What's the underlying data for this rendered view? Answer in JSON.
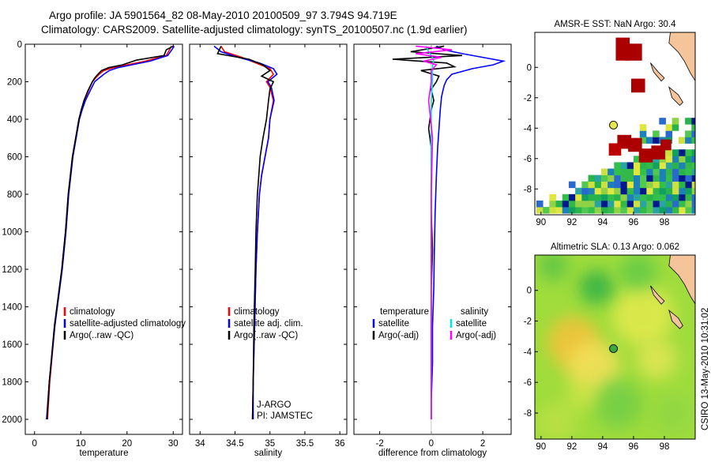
{
  "header": {
    "line1": "Argo profile: JA 5901564_82 08-May-2010 20100509_97 3.794S 94.719E",
    "line2": "Climatology: CARS2009. Satellite-adjusted climatology: synTS_20100507.nc (1.9d earlier)"
  },
  "colors": {
    "clim": "#ff0000",
    "sat": "#0000ff",
    "argo": "#000000",
    "sat_sal": "#00e5e5",
    "argo_sal": "#ff00ff",
    "marker": "#e6e64d"
  },
  "chart_data": [
    {
      "id": "temperature",
      "type": "line",
      "xlabel": "temperature",
      "ylabel": "",
      "xlim": [
        -2,
        32
      ],
      "ylim": [
        0,
        2080
      ],
      "y_inverted": true,
      "xticks": [
        0,
        10,
        20,
        30
      ],
      "yticks": [
        0,
        200,
        400,
        600,
        800,
        1000,
        1200,
        1400,
        1600,
        1800,
        2000
      ],
      "series": [
        {
          "name": "climatology",
          "color": "#ff0000",
          "x": [
            29.6,
            29.2,
            28.5,
            24,
            20,
            17,
            15,
            14,
            13.2,
            12.5,
            11.6,
            10.8,
            10.2,
            9.6,
            8.9,
            8.2,
            7.3,
            6.7,
            5.9,
            4.4,
            3.3,
            2.8
          ],
          "y": [
            10,
            30,
            60,
            90,
            110,
            125,
            140,
            160,
            180,
            200,
            250,
            300,
            350,
            400,
            500,
            600,
            800,
            1000,
            1200,
            1500,
            1800,
            2000
          ]
        },
        {
          "name": "satellite-adjusted climatology",
          "color": "#0000ff",
          "x": [
            30.2,
            29.7,
            28.8,
            25,
            21,
            18,
            16.2,
            15,
            14,
            13,
            12,
            11,
            10.3,
            9.7,
            9,
            8.3,
            7.4,
            6.8,
            6,
            4.4,
            3.2,
            2.6
          ],
          "y": [
            10,
            30,
            60,
            90,
            110,
            125,
            140,
            160,
            180,
            200,
            250,
            300,
            350,
            400,
            500,
            600,
            800,
            1000,
            1200,
            1500,
            1800,
            2000
          ]
        },
        {
          "name": "Argo(..raw -QC)",
          "color": "#000000",
          "x": [
            30,
            28.5,
            28,
            22,
            19,
            16,
            14.5,
            13.7,
            13,
            12.5,
            11.5,
            10.7,
            10.1,
            9.6,
            8.9,
            8.2,
            7.3,
            6.7,
            5.9,
            4.3,
            3.2,
            2.7
          ],
          "y": [
            10,
            30,
            60,
            85,
            110,
            125,
            140,
            160,
            180,
            200,
            250,
            300,
            350,
            400,
            500,
            600,
            800,
            1000,
            1200,
            1500,
            1800,
            2000
          ]
        }
      ],
      "legend": [
        "climatology",
        "satellite-adjusted climatology",
        "Argo(..raw -QC)"
      ]
    },
    {
      "id": "salinity",
      "type": "line",
      "xlabel": "salinity",
      "ylabel": "",
      "xlim": [
        33.85,
        36.1
      ],
      "ylim": [
        0,
        2080
      ],
      "y_inverted": true,
      "xticks": [
        34,
        34.5,
        35,
        35.5,
        36
      ],
      "yticks": [
        0,
        200,
        400,
        600,
        800,
        1000,
        1200,
        1400,
        1600,
        1800,
        2000
      ],
      "series": [
        {
          "name": "climatology",
          "color": "#ff0000",
          "x": [
            34.3,
            34.35,
            34.6,
            34.8,
            35.0,
            35.05,
            34.95,
            35.0,
            35.05,
            35.0,
            34.98,
            34.93,
            34.88,
            34.85,
            34.82,
            34.8,
            34.78,
            34.76,
            34.75
          ],
          "y": [
            10,
            40,
            70,
            100,
            130,
            160,
            200,
            230,
            300,
            400,
            500,
            600,
            700,
            800,
            1000,
            1200,
            1500,
            1800,
            2000
          ]
        },
        {
          "name": "satellite adj. clim.",
          "color": "#0000ff",
          "x": [
            34.2,
            34.3,
            34.55,
            34.85,
            35.05,
            35.1,
            34.97,
            35.02,
            35.06,
            35.0,
            34.98,
            34.93,
            34.88,
            34.85,
            34.82,
            34.8,
            34.78,
            34.76,
            34.76
          ],
          "y": [
            10,
            40,
            70,
            100,
            130,
            160,
            200,
            230,
            300,
            400,
            500,
            600,
            700,
            800,
            1000,
            1200,
            1500,
            1800,
            2000
          ]
        },
        {
          "name": "Argo(..raw -QC)",
          "color": "#000000",
          "x": [
            34.3,
            34.25,
            34.7,
            34.9,
            35.0,
            34.88,
            35.05,
            35.0,
            34.98,
            34.95,
            34.9,
            34.86,
            34.84,
            34.82,
            34.8,
            34.79,
            34.77,
            34.76,
            34.75
          ],
          "y": [
            10,
            50,
            80,
            110,
            140,
            170,
            200,
            240,
            300,
            400,
            500,
            600,
            700,
            800,
            1000,
            1200,
            1500,
            1800,
            2000
          ]
        }
      ],
      "legend": [
        "climatology",
        "satellite adj. clim.",
        "Argo(..raw -QC)"
      ],
      "annotations": [
        "J-ARGO",
        "PI: JAMSTEC"
      ]
    },
    {
      "id": "difference",
      "type": "line",
      "xlabel": "difference from climatology",
      "ylabel": "",
      "xlim": [
        -3,
        3.1
      ],
      "ylim": [
        0,
        2080
      ],
      "y_inverted": true,
      "xticks": [
        -2,
        0,
        2
      ],
      "yticks": [
        0,
        200,
        400,
        600,
        800,
        1000,
        1200,
        1400,
        1600,
        1800,
        2000
      ],
      "series": [
        {
          "name": "temperature satellite",
          "color": "#0000ff",
          "x": [
            0.2,
            0.5,
            1.2,
            2.0,
            2.8,
            2.4,
            1.6,
            0.8,
            0.6,
            0.5,
            0.4,
            0.35,
            0.3,
            0.25,
            0.2,
            0.15,
            0.12,
            0.1,
            0.05,
            0.05,
            0.0,
            0.0
          ],
          "y": [
            10,
            30,
            50,
            70,
            90,
            110,
            130,
            160,
            190,
            220,
            280,
            350,
            450,
            550,
            700,
            900,
            1100,
            1300,
            1500,
            1700,
            1900,
            2000
          ]
        },
        {
          "name": "temperature Argo(-adj)",
          "color": "#000000",
          "x": [
            0.5,
            -0.8,
            1.2,
            -1.5,
            0.6,
            0.9,
            -0.4,
            0.3,
            0.2,
            0.0,
            0.1,
            0.0,
            -0.1,
            0.0,
            0.0,
            0.0,
            0.05,
            0.0,
            0.0,
            0.0,
            0.0,
            0.0
          ],
          "y": [
            10,
            40,
            60,
            80,
            100,
            120,
            140,
            170,
            200,
            240,
            300,
            350,
            450,
            550,
            700,
            900,
            1100,
            1300,
            1500,
            1700,
            1900,
            2000
          ]
        },
        {
          "name": "salinity satellite",
          "color": "#00e5e5",
          "x": [
            -0.2,
            -0.1,
            0.1,
            0.05,
            0.05,
            0.0,
            0.0,
            0.0,
            0.0,
            0.0,
            0.0,
            0.0,
            0.0,
            0.0
          ],
          "y": [
            10,
            40,
            80,
            120,
            200,
            300,
            400,
            600,
            800,
            1000,
            1300,
            1600,
            1800,
            2000
          ]
        },
        {
          "name": "salinity Argo(-adj)",
          "color": "#ff00ff",
          "x": [
            -0.6,
            0.8,
            -0.6,
            0.4,
            -0.3,
            0.2,
            0.0,
            0.0,
            -0.1,
            0.05,
            0.0,
            0.0,
            0.0
          ],
          "y": [
            10,
            30,
            50,
            70,
            90,
            110,
            140,
            200,
            300,
            500,
            800,
            1200,
            2000
          ]
        }
      ],
      "legend_left_heading": "temperature",
      "legend_right_heading": "salinity",
      "legend_left": [
        "satellite",
        "Argo(-adj)"
      ],
      "legend_right": [
        "satellite",
        "Argo(-adj)"
      ]
    }
  ],
  "sst_map": {
    "title": "AMSR-E SST: NaN Argo: 30.4",
    "xticks": [
      90,
      92,
      94,
      96,
      98
    ],
    "yticks": [
      0,
      -2,
      -4,
      -6,
      -8
    ],
    "xlim": [
      89.6,
      100
    ],
    "ylim": [
      -9.7,
      2.3
    ],
    "argo": {
      "lon": 94.7,
      "lat": -3.8
    }
  },
  "sla_map": {
    "title": "Altimetric SLA: 0.13 Argo: 0.062",
    "xticks": [
      90,
      92,
      94,
      96,
      98
    ],
    "yticks": [
      0,
      -2,
      -4,
      -6,
      -8
    ],
    "xlim": [
      89.6,
      100
    ],
    "ylim": [
      -9.7,
      2.3
    ],
    "argo": {
      "lon": 94.7,
      "lat": -3.8
    }
  },
  "footer": {
    "stamp": "CSIRO 13-May-2010 10:31:02"
  }
}
